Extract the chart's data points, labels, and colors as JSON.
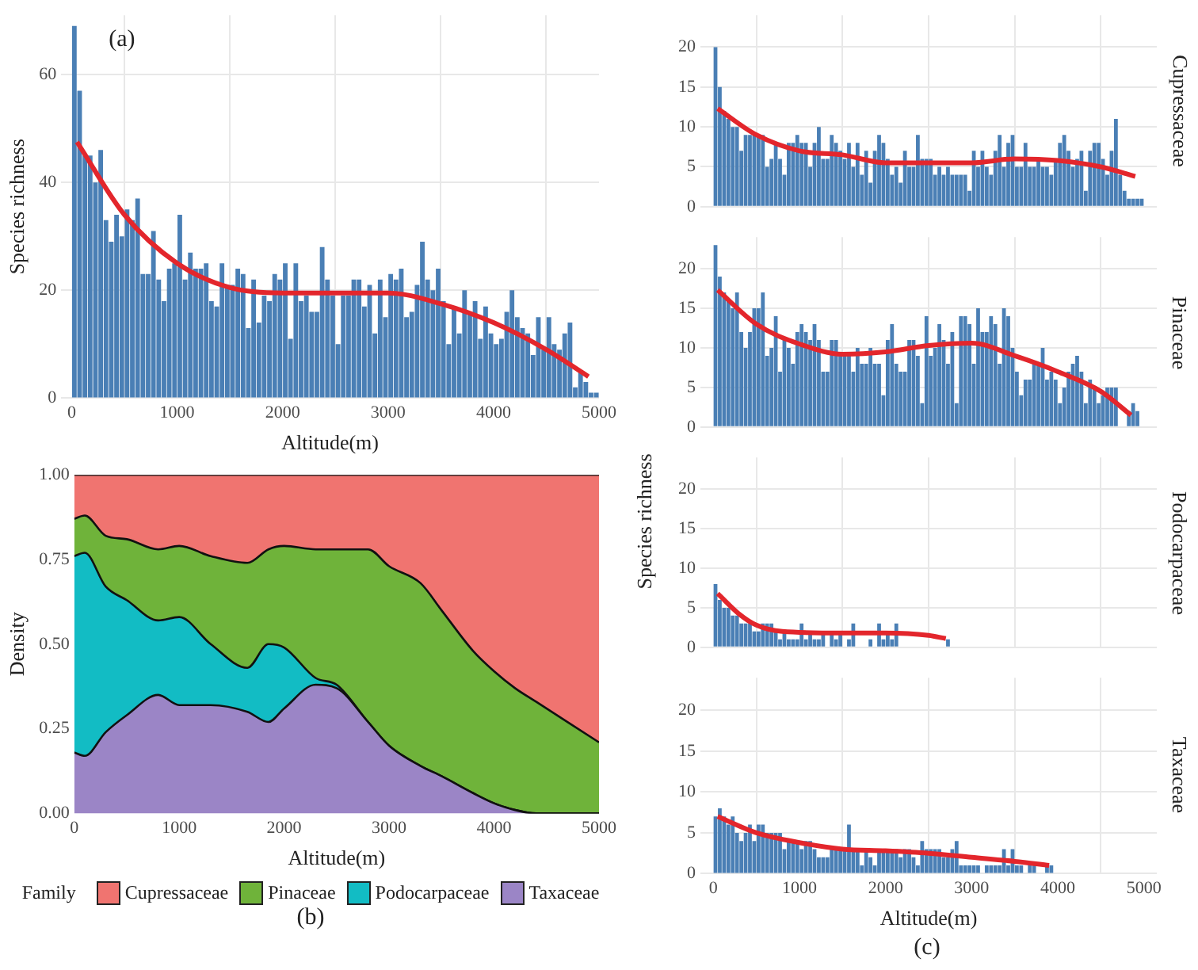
{
  "chart_data": [
    {
      "type": "histogram",
      "title": "(a)",
      "xlabel": "Altitude(m)",
      "ylabel": "Species richness",
      "xlim": [
        -100,
        5000
      ],
      "xticks": [
        0,
        1000,
        2000,
        3000,
        4000,
        5000
      ],
      "ylim": [
        0,
        71
      ],
      "yticks": [
        0,
        20,
        40,
        60
      ],
      "grid": true,
      "legend": false,
      "series": [
        {
          "type": "histogram",
          "color": "#4a7fb5",
          "bins": [
            0,
            50,
            100,
            150,
            200,
            250,
            300,
            350,
            400,
            450,
            500,
            550,
            600,
            650,
            700,
            750,
            800,
            850,
            900,
            950,
            1000,
            1050,
            1100,
            1150,
            1200,
            1250,
            1300,
            1350,
            1400,
            1450,
            1500,
            1550,
            1600,
            1650,
            1700,
            1750,
            1800,
            1850,
            1900,
            1950,
            2000,
            2050,
            2100,
            2150,
            2200,
            2250,
            2300,
            2350,
            2400,
            2450,
            2500,
            2550,
            2600,
            2650,
            2700,
            2750,
            2800,
            2850,
            2900,
            2950,
            3000,
            3050,
            3100,
            3150,
            3200,
            3250,
            3300,
            3350,
            3400,
            3450,
            3500,
            3550,
            3600,
            3650,
            3700,
            3750,
            3800,
            3850,
            3900,
            3950,
            4000,
            4050,
            4100,
            4150,
            4200,
            4250,
            4300,
            4350,
            4400,
            4450,
            4500,
            4550,
            4600,
            4650,
            4700,
            4750,
            4800,
            4850,
            4900,
            4950,
            5000
          ],
          "values": [
            69,
            57,
            45,
            45,
            40,
            46,
            33,
            29,
            34,
            30,
            35,
            33,
            37,
            23,
            23,
            31,
            22,
            18,
            24,
            25,
            34,
            22,
            27,
            24,
            24,
            25,
            18,
            17,
            25,
            21,
            21,
            24,
            23,
            13,
            22,
            14,
            19,
            18,
            23,
            22,
            25,
            11,
            25,
            18,
            19,
            16,
            16,
            28,
            22,
            19,
            10,
            19,
            19,
            22,
            22,
            17,
            21,
            12,
            22,
            15,
            23,
            22,
            24,
            15,
            16,
            21,
            29,
            22,
            20,
            24,
            18,
            10,
            17,
            12,
            20,
            16,
            18,
            11,
            17,
            12,
            10,
            11,
            16,
            20,
            15,
            13,
            12,
            8,
            15,
            9,
            15,
            10,
            9,
            12,
            14,
            2,
            5,
            3,
            1,
            1
          ]
        },
        {
          "type": "line",
          "color": "#e3262c",
          "marker": "none",
          "x": [
            50,
            500,
            1000,
            1500,
            2000,
            2500,
            3000,
            3500,
            4000,
            4500,
            4900
          ],
          "values": [
            47.5,
            34,
            25,
            20.5,
            19.5,
            19.5,
            19.5,
            17.5,
            14,
            9,
            4
          ]
        }
      ]
    },
    {
      "type": "area",
      "title": "(b)",
      "xlabel": "Altitude(m)",
      "ylabel": "Density",
      "legend_title": "Family",
      "legend": "bottom",
      "stacked": true,
      "grid": false,
      "xlim": [
        0,
        5000
      ],
      "xticks": [
        0,
        1000,
        2000,
        3000,
        4000,
        5000
      ],
      "ylim": [
        0,
        1
      ],
      "yticks": [
        {
          "value": 0,
          "label": "0.00"
        },
        {
          "value": 0.25,
          "label": "0.25"
        },
        {
          "value": 0.5,
          "label": "0.50"
        },
        {
          "value": 0.75,
          "label": "0.75"
        },
        {
          "value": 1,
          "label": "1.00"
        }
      ],
      "x": [
        0,
        100,
        300,
        500,
        800,
        1000,
        1300,
        1650,
        1850,
        2000,
        2300,
        2500,
        2800,
        3000,
        3300,
        3500,
        3800,
        4000,
        4200,
        4400,
        5000
      ],
      "series": [
        {
          "name": "Taxaceae",
          "color": "#9b85c6",
          "values": [
            0.18,
            0.17,
            0.24,
            0.29,
            0.35,
            0.32,
            0.32,
            0.3,
            0.27,
            0.31,
            0.38,
            0.37,
            0.27,
            0.2,
            0.14,
            0.11,
            0.06,
            0.03,
            0.01,
            0,
            0
          ]
        },
        {
          "name": "Podocarpaceae",
          "color": "#12bcc4",
          "values": [
            0.58,
            0.6,
            0.43,
            0.34,
            0.22,
            0.26,
            0.18,
            0.13,
            0.23,
            0.18,
            0.02,
            0.01,
            0,
            0,
            0,
            0,
            0,
            0,
            0,
            0,
            0
          ]
        },
        {
          "name": "Pinaceae",
          "color": "#6fb33a",
          "values": [
            0.11,
            0.11,
            0.15,
            0.18,
            0.21,
            0.21,
            0.26,
            0.31,
            0.28,
            0.3,
            0.38,
            0.4,
            0.51,
            0.53,
            0.54,
            0.49,
            0.42,
            0.39,
            0.36,
            0.33,
            0.21
          ]
        },
        {
          "name": "Cupressaceae",
          "color": "#f07470",
          "values": [
            0.13,
            0.12,
            0.18,
            0.19,
            0.22,
            0.21,
            0.24,
            0.26,
            0.22,
            0.21,
            0.22,
            0.22,
            0.22,
            0.27,
            0.32,
            0.4,
            0.52,
            0.58,
            0.63,
            0.67,
            0.79
          ]
        }
      ]
    },
    {
      "type": "histogram",
      "xlim": [
        -150,
        5150
      ],
      "xticks": [
        0,
        1000,
        2000,
        3000,
        4000,
        5000
      ],
      "ylim": [
        0,
        24
      ],
      "yticks": [
        0,
        5,
        10,
        15,
        20
      ],
      "grid": true,
      "legend": false,
      "tick_labels": "y",
      "series": [
        {
          "type": "histogram",
          "name": "Cupressaceae",
          "color": "#4a7fb5",
          "bins": [
            0,
            50,
            100,
            150,
            200,
            250,
            300,
            350,
            400,
            450,
            500,
            550,
            600,
            650,
            700,
            750,
            800,
            850,
            900,
            950,
            1000,
            1050,
            1100,
            1150,
            1200,
            1250,
            1300,
            1350,
            1400,
            1450,
            1500,
            1550,
            1600,
            1650,
            1700,
            1750,
            1800,
            1850,
            1900,
            1950,
            2000,
            2050,
            2100,
            2150,
            2200,
            2250,
            2300,
            2350,
            2400,
            2450,
            2500,
            2550,
            2600,
            2650,
            2700,
            2750,
            2800,
            2850,
            2900,
            2950,
            3000,
            3050,
            3100,
            3150,
            3200,
            3250,
            3300,
            3350,
            3400,
            3450,
            3500,
            3550,
            3600,
            3650,
            3700,
            3750,
            3800,
            3850,
            3900,
            3950,
            4000,
            4050,
            4100,
            4150,
            4200,
            4250,
            4300,
            4350,
            4400,
            4450,
            4500,
            4550,
            4600,
            4650,
            4700,
            4750,
            4800,
            4850,
            4900,
            4950,
            5000
          ],
          "values": [
            20,
            15,
            12,
            11,
            10,
            10,
            7,
            9,
            9,
            9,
            9,
            9,
            5,
            6,
            8,
            6,
            4,
            8,
            8,
            9,
            8,
            8,
            5,
            8,
            10,
            6,
            6,
            9,
            8,
            7,
            6,
            8,
            5,
            8,
            4,
            7,
            3,
            7,
            9,
            8,
            6,
            4,
            5,
            3,
            7,
            5,
            5,
            9,
            6,
            6,
            6,
            4,
            5,
            4,
            5,
            4,
            4,
            4,
            4,
            2,
            7,
            5,
            7,
            5,
            4,
            7,
            9,
            5,
            8,
            9,
            5,
            5,
            8,
            5,
            5,
            6,
            5,
            5,
            4,
            6,
            8,
            9,
            7,
            5,
            6,
            7,
            2,
            7,
            8,
            8,
            6,
            4,
            7,
            11,
            4,
            2,
            1,
            1,
            1,
            1
          ]
        },
        {
          "type": "line",
          "color": "#e3262c",
          "marker": "none",
          "x": [
            50,
            500,
            1000,
            1500,
            2000,
            2500,
            3000,
            3500,
            4000,
            4500,
            4900
          ],
          "values": [
            12.3,
            9,
            7,
            6.5,
            5.5,
            5.5,
            5.5,
            6,
            5.8,
            5,
            3.8
          ]
        }
      ]
    },
    {
      "type": "histogram",
      "xlim": [
        -150,
        5150
      ],
      "xticks": [
        0,
        1000,
        2000,
        3000,
        4000,
        5000
      ],
      "ylim": [
        0,
        24
      ],
      "yticks": [
        0,
        5,
        10,
        15,
        20
      ],
      "grid": true,
      "legend": false,
      "tick_labels": "y",
      "series": [
        {
          "type": "histogram",
          "name": "Pinaceae",
          "color": "#4a7fb5",
          "bins": [
            0,
            50,
            100,
            150,
            200,
            250,
            300,
            350,
            400,
            450,
            500,
            550,
            600,
            650,
            700,
            750,
            800,
            850,
            900,
            950,
            1000,
            1050,
            1100,
            1150,
            1200,
            1250,
            1300,
            1350,
            1400,
            1450,
            1500,
            1550,
            1600,
            1650,
            1700,
            1750,
            1800,
            1850,
            1900,
            1950,
            2000,
            2050,
            2100,
            2150,
            2200,
            2250,
            2300,
            2350,
            2400,
            2450,
            2500,
            2550,
            2600,
            2650,
            2700,
            2750,
            2800,
            2850,
            2900,
            2950,
            3000,
            3050,
            3100,
            3150,
            3200,
            3250,
            3300,
            3350,
            3400,
            3450,
            3500,
            3550,
            3600,
            3650,
            3700,
            3750,
            3800,
            3850,
            3900,
            3950,
            4000,
            4050,
            4100,
            4150,
            4200,
            4250,
            4300,
            4350,
            4400,
            4450,
            4500,
            4550,
            4600,
            4650,
            4700,
            4750,
            4800,
            4850,
            4900,
            4950,
            5000
          ],
          "values": [
            23,
            19,
            17,
            16,
            15,
            17,
            12,
            10,
            12,
            15,
            15,
            17,
            9,
            10,
            14,
            7,
            11,
            10,
            8,
            12,
            13,
            12,
            11,
            13,
            11,
            7,
            7,
            11,
            11,
            9,
            9,
            9,
            7,
            10,
            8,
            8,
            10,
            8,
            8,
            4,
            11,
            13,
            8,
            7,
            7,
            11,
            11,
            9,
            3,
            14,
            9,
            10,
            13,
            11,
            8,
            12,
            3,
            14,
            14,
            13,
            8,
            15,
            12,
            12,
            14,
            13,
            8,
            15,
            14,
            10,
            7,
            4,
            6,
            6,
            8,
            8,
            10,
            6,
            7,
            6,
            3,
            5,
            7,
            8,
            9,
            7,
            3,
            6,
            5,
            3,
            4,
            5,
            5,
            5,
            0,
            0,
            2,
            3,
            2,
            0
          ]
        },
        {
          "type": "line",
          "color": "#e3262c",
          "marker": "none",
          "x": [
            50,
            500,
            1000,
            1500,
            2000,
            2500,
            3000,
            3500,
            4000,
            4500,
            4850
          ],
          "values": [
            17.3,
            13,
            10.5,
            9.2,
            9.5,
            10.3,
            10.6,
            9,
            7,
            4.5,
            1.5
          ]
        }
      ]
    },
    {
      "type": "histogram",
      "ylabel": "Species richness",
      "xlim": [
        -150,
        5150
      ],
      "xticks": [
        0,
        1000,
        2000,
        3000,
        4000,
        5000
      ],
      "ylim": [
        0,
        24
      ],
      "yticks": [
        0,
        5,
        10,
        15,
        20
      ],
      "grid": true,
      "legend": false,
      "tick_labels": "y",
      "series": [
        {
          "type": "histogram",
          "name": "Podocarpaceae",
          "color": "#4a7fb5",
          "bins": [
            0,
            50,
            100,
            150,
            200,
            250,
            300,
            350,
            400,
            450,
            500,
            550,
            600,
            650,
            700,
            750,
            800,
            850,
            900,
            950,
            1000,
            1050,
            1100,
            1150,
            1200,
            1250,
            1300,
            1350,
            1400,
            1450,
            1500,
            1550,
            1600,
            1650,
            1700,
            1750,
            1800,
            1850,
            1900,
            1950,
            2000,
            2050,
            2100,
            2150,
            2200,
            2250,
            2300,
            2350,
            2400,
            2450,
            2500,
            2550,
            2600,
            2650,
            2700,
            2750
          ],
          "values": [
            8,
            6,
            5,
            5,
            4,
            4,
            3,
            3,
            3,
            2,
            2,
            3,
            3,
            3,
            2,
            1,
            2,
            1,
            1,
            1,
            3,
            1,
            2,
            1,
            1,
            2,
            0,
            2,
            1,
            2,
            0,
            1,
            3,
            0,
            0,
            0,
            1,
            0,
            3,
            1,
            2,
            1,
            3,
            0,
            0,
            0,
            0,
            0,
            0,
            0,
            0,
            0,
            0,
            0,
            1
          ]
        },
        {
          "type": "line",
          "color": "#e3262c",
          "marker": "none",
          "x": [
            50,
            300,
            500,
            800,
            1500,
            2000,
            2500,
            2700
          ],
          "values": [
            6.8,
            4.2,
            2.8,
            2,
            1.8,
            1.8,
            1.5,
            1.1
          ]
        }
      ]
    },
    {
      "type": "histogram",
      "xlabel": "Altitude(m)",
      "annotations": [
        "(c)"
      ],
      "xlim": [
        -150,
        5150
      ],
      "xticks": [
        0,
        1000,
        2000,
        3000,
        4000,
        5000
      ],
      "ylim": [
        0,
        24
      ],
      "yticks": [
        0,
        5,
        10,
        15,
        20
      ],
      "grid": true,
      "legend": false,
      "series": [
        {
          "type": "histogram",
          "name": "Taxaceae",
          "color": "#4a7fb5",
          "bins": [
            0,
            50,
            100,
            150,
            200,
            250,
            300,
            350,
            400,
            450,
            500,
            550,
            600,
            650,
            700,
            750,
            800,
            850,
            900,
            950,
            1000,
            1050,
            1100,
            1150,
            1200,
            1250,
            1300,
            1350,
            1400,
            1450,
            1500,
            1550,
            1600,
            1650,
            1700,
            1750,
            1800,
            1850,
            1900,
            1950,
            2000,
            2050,
            2100,
            2150,
            2200,
            2250,
            2300,
            2350,
            2400,
            2450,
            2500,
            2550,
            2600,
            2650,
            2700,
            2750,
            2800,
            2850,
            2900,
            2950,
            3000,
            3050,
            3100,
            3150,
            3200,
            3250,
            3300,
            3350,
            3400,
            3450,
            3500,
            3550,
            3600,
            3650,
            3700,
            3750,
            3800,
            3850,
            3900,
            3950
          ],
          "values": [
            7,
            8,
            7,
            6,
            7,
            5,
            4,
            5,
            6,
            4,
            6,
            6,
            5,
            5,
            5,
            5,
            3,
            4,
            4,
            4,
            3,
            4,
            4,
            3,
            2,
            2,
            2,
            3,
            3,
            3,
            3,
            6,
            3,
            3,
            1,
            3,
            2,
            1,
            3,
            3,
            3,
            3,
            3,
            2,
            3,
            3,
            2,
            1,
            4,
            3,
            3,
            3,
            3,
            2,
            2,
            3,
            4,
            1,
            1,
            1,
            1,
            1,
            0,
            1,
            1,
            1,
            1,
            3,
            1,
            3,
            1,
            1,
            0,
            1,
            1,
            0,
            0,
            1,
            1
          ]
        },
        {
          "type": "line",
          "color": "#e3262c",
          "marker": "none",
          "x": [
            50,
            500,
            1000,
            1500,
            2000,
            2500,
            3000,
            3500,
            3900
          ],
          "values": [
            7,
            5,
            3.8,
            3,
            2.8,
            2.5,
            2,
            1.5,
            1
          ]
        }
      ]
    }
  ]
}
